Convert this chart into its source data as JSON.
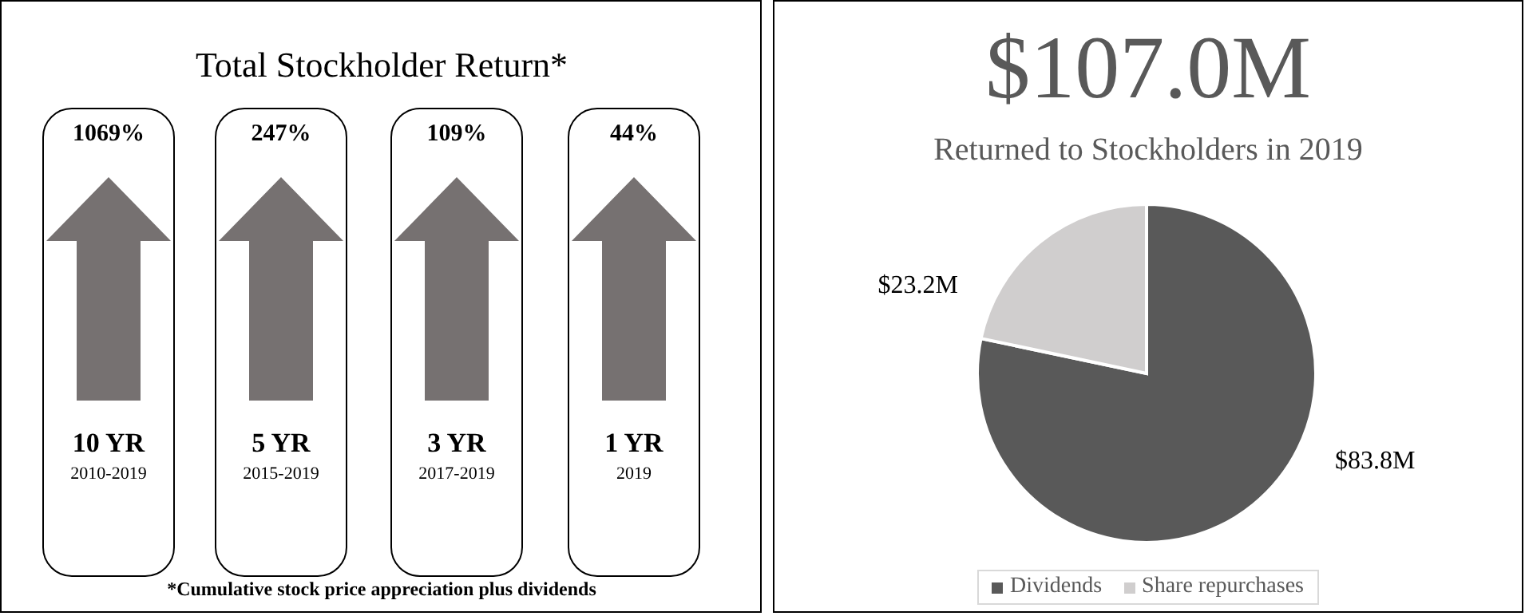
{
  "chart_data": [
    {
      "type": "other",
      "title": "Total Stockholder Return*",
      "categories": [
        "10 YR",
        "5 YR",
        "3 YR",
        "1 YR"
      ],
      "value_labels": [
        "1069%",
        "247%",
        "109%",
        "44%"
      ],
      "annotations": [
        {
          "text": "2010-2019",
          "x": "10 YR"
        },
        {
          "text": "2015-2019",
          "x": "5 YR"
        },
        {
          "text": "2017-2019",
          "x": "3 YR"
        },
        {
          "text": "2019",
          "x": "1 YR"
        },
        "*Cumulative stock price appreciation plus dividends"
      ]
    },
    {
      "type": "pie",
      "title": "$107.0M",
      "subtitle": "Returned to Stockholders in 2019",
      "categories": [
        "Dividends",
        "Share repurchases"
      ],
      "values": [
        83.8,
        23.2
      ],
      "colors": [
        "#595959",
        "#d0cece"
      ],
      "value_labels": [
        "$83.8M",
        "$23.2M"
      ],
      "legend": "bottom"
    }
  ]
}
